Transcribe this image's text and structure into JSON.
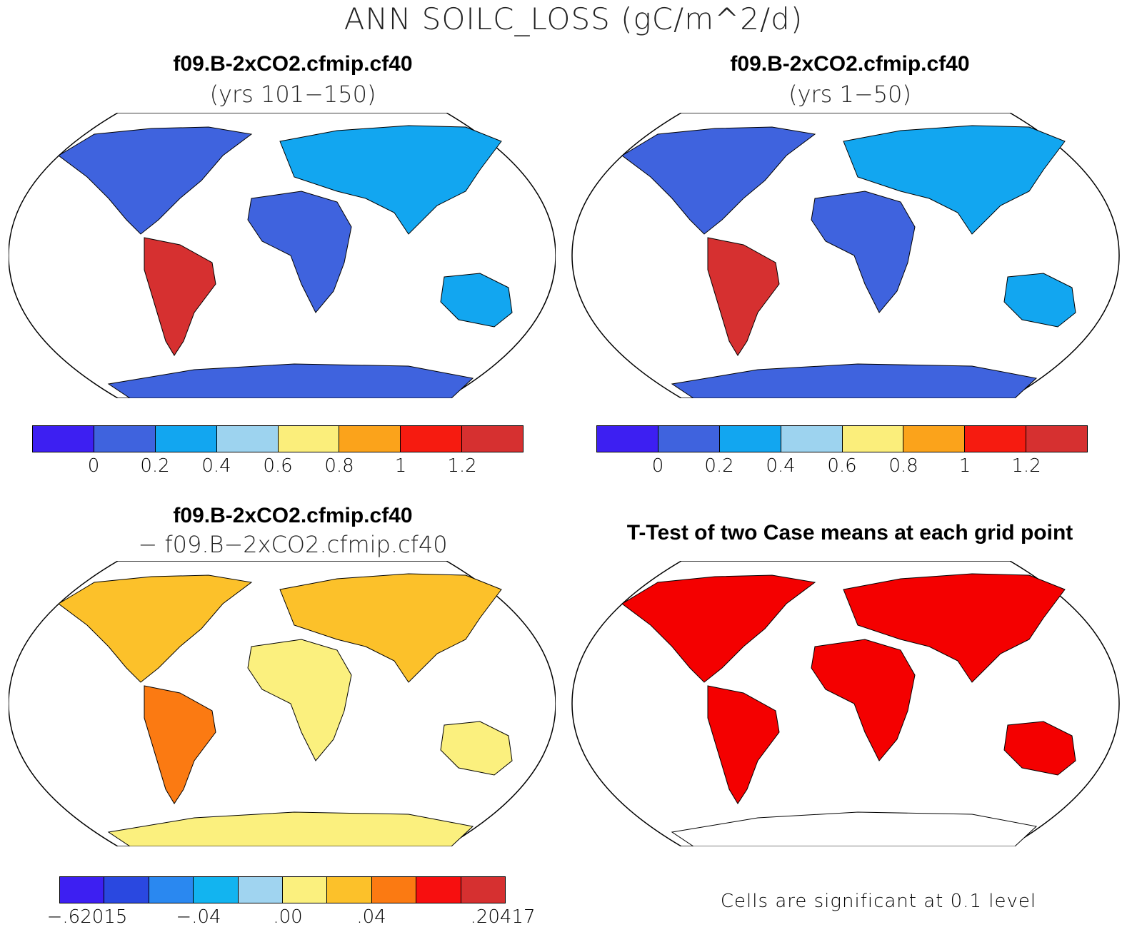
{
  "figure": {
    "title": "ANN SOILC_LOSS (gC/m^2/d)"
  },
  "panels": {
    "top_left": {
      "case": "f09.B-2xCO2.cfmip.cf40",
      "period": "(yrs 101−150)"
    },
    "top_right": {
      "case": "f09.B-2xCO2.cfmip.cf40",
      "period": "(yrs 1−50)"
    },
    "bottom_left": {
      "case": "f09.B-2xCO2.cfmip.cf40",
      "minus_case": "− f09.B−2xCO2.cfmip.cf40"
    },
    "bottom_right": {
      "title": "T-Test of two Case means at each grid point",
      "note": "Cells are significant at 0.1 level"
    }
  },
  "colorbars": {
    "absolute": {
      "colors": [
        "#3d1ff2",
        "#3f63de",
        "#12a6f0",
        "#9dd3ef",
        "#fbee7b",
        "#fba31b",
        "#f61b10",
        "#d63030"
      ],
      "labels": [
        "0",
        "0.2",
        "0.4",
        "0.6",
        "0.8",
        "1",
        "1.2"
      ]
    },
    "difference": {
      "colors": [
        "#3d1ff2",
        "#2a48e0",
        "#2a88f0",
        "#12b4f0",
        "#a0d4f0",
        "#fbf07e",
        "#fcc12a",
        "#fb7a12",
        "#f70f0f",
        "#d63030"
      ],
      "labels": [
        "−.62015",
        "−.04",
        ".00",
        ".04",
        ".20417"
      ]
    }
  },
  "significance_color": "#f40000"
}
